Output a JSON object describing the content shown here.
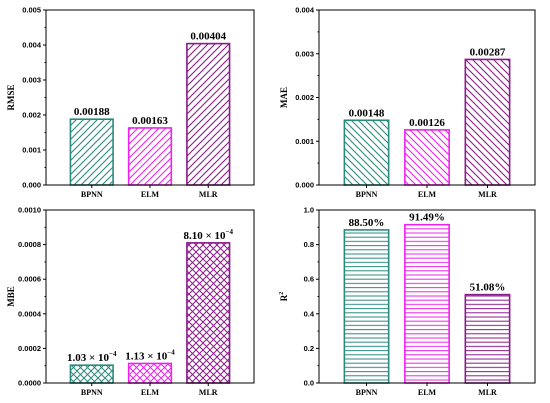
{
  "chart_data": [
    {
      "id": "rmse",
      "type": "bar",
      "ylabel": "RMSE",
      "categories": [
        "BPNN",
        "ELM",
        "MLR"
      ],
      "values": [
        0.00188,
        0.00163,
        0.00404
      ],
      "value_labels": [
        "0.00188",
        "0.00163",
        "0.00404"
      ],
      "ylim": [
        0,
        0.005
      ],
      "yticks": [
        0,
        0.001,
        0.002,
        0.003,
        0.004,
        0.005
      ],
      "ytick_labels": [
        "0.000",
        "0.001",
        "0.002",
        "0.003",
        "0.004",
        "0.005"
      ],
      "colors": [
        "#2b8a7e",
        "#ee22ee",
        "#8b1a8b"
      ],
      "patterns": [
        "diag",
        "diag",
        "diag"
      ]
    },
    {
      "id": "mae",
      "type": "bar",
      "ylabel": "MAE",
      "categories": [
        "BPNN",
        "ELM",
        "MLR"
      ],
      "values": [
        0.00148,
        0.00126,
        0.00287
      ],
      "value_labels": [
        "0.00148",
        "0.00126",
        "0.00287"
      ],
      "ylim": [
        0,
        0.004
      ],
      "yticks": [
        0,
        0.001,
        0.002,
        0.003,
        0.004
      ],
      "ytick_labels": [
        "0.000",
        "0.001",
        "0.002",
        "0.003",
        "0.004"
      ],
      "colors": [
        "#2b8a7e",
        "#ee22ee",
        "#8b1a8b"
      ],
      "patterns": [
        "diag-back",
        "diag-back",
        "diag-back"
      ]
    },
    {
      "id": "mbe",
      "type": "bar",
      "ylabel": "MBE",
      "categories": [
        "BPNN",
        "ELM",
        "MLR"
      ],
      "values": [
        0.000103,
        0.000113,
        0.00081
      ],
      "value_labels": [
        "1.03 × 10",
        "1.13 × 10",
        "8.10 × 10"
      ],
      "value_label_exponents": [
        "−4",
        "−4",
        "−4"
      ],
      "ylim": [
        0,
        0.001
      ],
      "yticks": [
        0,
        0.0002,
        0.0004,
        0.0006,
        0.0008,
        0.001
      ],
      "ytick_labels": [
        "0.0000",
        "0.0002",
        "0.0004",
        "0.0006",
        "0.0008",
        "0.0010"
      ],
      "colors": [
        "#2b8a7e",
        "#ee22ee",
        "#8b1a8b"
      ],
      "patterns": [
        "cross",
        "cross",
        "cross"
      ]
    },
    {
      "id": "r2",
      "type": "bar",
      "ylabel": "R",
      "ylabel_superscript": "2",
      "categories": [
        "BPNN",
        "ELM",
        "MLR"
      ],
      "values": [
        0.885,
        0.9149,
        0.5108
      ],
      "value_labels": [
        "88.50%",
        "91.49%",
        "51.08%"
      ],
      "ylim": [
        0,
        1.0
      ],
      "yticks": [
        0,
        0.2,
        0.4,
        0.6,
        0.8,
        1.0
      ],
      "ytick_labels": [
        "0.0",
        "0.2",
        "0.4",
        "0.6",
        "0.8",
        "1.0"
      ],
      "colors": [
        "#2b8a7e",
        "#ee22ee",
        "#8b1a8b"
      ],
      "patterns": [
        "horiz",
        "horiz",
        "horiz"
      ]
    }
  ]
}
